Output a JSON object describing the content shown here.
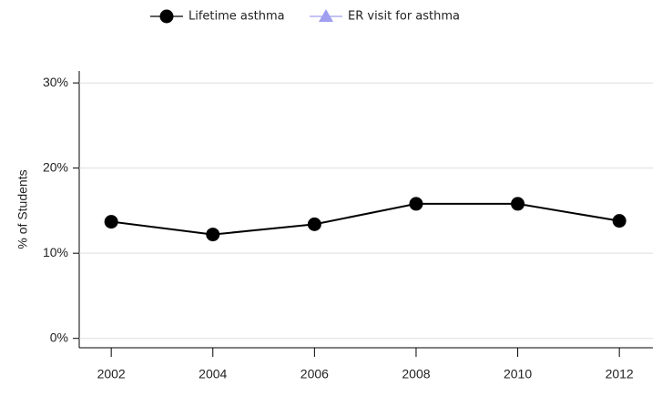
{
  "chart_data": {
    "type": "line",
    "y_label": "% of Students",
    "x": [
      2002,
      2004,
      2006,
      2008,
      2010,
      2012
    ],
    "series": [
      {
        "name": "Lifetime asthma",
        "color": "#000000",
        "marker": "circle",
        "values": [
          13.7,
          12.2,
          13.4,
          15.8,
          15.8,
          13.8
        ]
      },
      {
        "name": "ER visit for asthma",
        "color": "#9f9ff0",
        "marker": "triangle",
        "values": [
          null,
          null,
          null,
          null,
          null,
          null
        ]
      }
    ],
    "xlim": [
      2001.37,
      2012.66
    ],
    "xticks": [
      2002,
      2004,
      2006,
      2008,
      2010,
      2012
    ],
    "ylim": [
      -1.1,
      31.4
    ],
    "yticks": [
      {
        "value": 0,
        "label": "0%"
      },
      {
        "value": 10,
        "label": "10%"
      },
      {
        "value": 20,
        "label": "20%"
      },
      {
        "value": 30,
        "label": "30%"
      }
    ],
    "grid": true,
    "legend": "top"
  }
}
